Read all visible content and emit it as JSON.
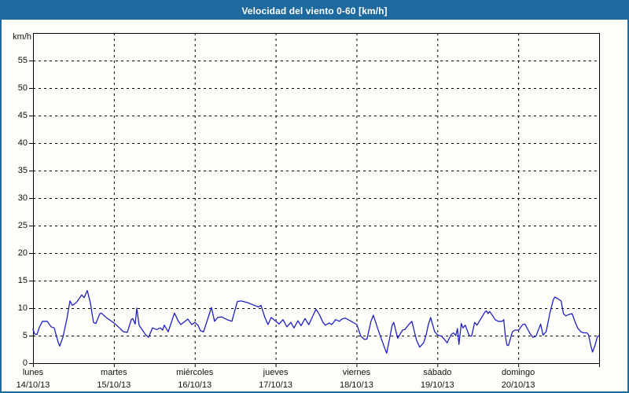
{
  "header": {
    "title": "Velocidad del viento 0-60 [km/h]"
  },
  "colors": {
    "header_bg": "#1e6a9e",
    "frame_border": "#1e6a9e",
    "canvas_bg": "#fdfefa",
    "line": "#2020c0",
    "axis": "#000000",
    "grid": "#000000",
    "text": "#111111",
    "title_text": "#ffffff"
  },
  "chart_data": {
    "type": "line",
    "title": "Velocidad del viento 0-60 [km/h]",
    "ylabel": "km/h",
    "xlabel": "",
    "ylim": [
      0,
      60
    ],
    "ytick_step": 5,
    "ytick_labeled_max": 55,
    "grid": "dashed",
    "legend": "none",
    "x_axis": {
      "unit": "days",
      "days": [
        {
          "name": "lunes",
          "date": "14/10/13"
        },
        {
          "name": "martes",
          "date": "15/10/13"
        },
        {
          "name": "miércoles",
          "date": "16/10/13"
        },
        {
          "name": "jueves",
          "date": "17/10/13"
        },
        {
          "name": "viernes",
          "date": "18/10/13"
        },
        {
          "name": "sábado",
          "date": "19/10/13"
        },
        {
          "name": "domingo",
          "date": "20/10/13"
        }
      ]
    },
    "series": [
      {
        "name": "Velocidad del viento",
        "unit": "km/h",
        "points": [
          [
            0,
            6.2
          ],
          [
            0.019,
            5.3
          ],
          [
            0.049,
            5.2
          ],
          [
            0.078,
            6.5
          ],
          [
            0.117,
            7.6
          ],
          [
            0.175,
            7.6
          ],
          [
            0.224,
            6.6
          ],
          [
            0.262,
            6.4
          ],
          [
            0.311,
            3.8
          ],
          [
            0.33,
            3.1
          ],
          [
            0.369,
            4.7
          ],
          [
            0.418,
            8
          ],
          [
            0.457,
            11.3
          ],
          [
            0.486,
            10.5
          ],
          [
            0.535,
            11
          ],
          [
            0.603,
            12.4
          ],
          [
            0.632,
            11.9
          ],
          [
            0.671,
            13.2
          ],
          [
            0.709,
            11
          ],
          [
            0.748,
            7.4
          ],
          [
            0.777,
            7.2
          ],
          [
            0.826,
            9
          ],
          [
            0.845,
            9.1
          ],
          [
            0.904,
            8.3
          ],
          [
            0.972,
            7.6
          ],
          [
            1.001,
            7.3
          ],
          [
            1.069,
            6.4
          ],
          [
            1.118,
            5.7
          ],
          [
            1.166,
            5.6
          ],
          [
            1.215,
            7.9
          ],
          [
            1.234,
            8.1
          ],
          [
            1.263,
            7.1
          ],
          [
            1.283,
            10
          ],
          [
            1.312,
            6.9
          ],
          [
            1.39,
            5.2
          ],
          [
            1.429,
            4.7
          ],
          [
            1.477,
            6.4
          ],
          [
            1.526,
            6.1
          ],
          [
            1.574,
            6.4
          ],
          [
            1.603,
            6
          ],
          [
            1.623,
            6.9
          ],
          [
            1.671,
            5.7
          ],
          [
            1.749,
            9.1
          ],
          [
            1.798,
            7.6
          ],
          [
            1.827,
            7
          ],
          [
            1.914,
            8
          ],
          [
            1.963,
            7
          ],
          [
            2.002,
            7.4
          ],
          [
            2.041,
            6.9
          ],
          [
            2.07,
            5.9
          ],
          [
            2.109,
            5.7
          ],
          [
            2.206,
            10.1
          ],
          [
            2.245,
            7.6
          ],
          [
            2.284,
            8.3
          ],
          [
            2.332,
            8.4
          ],
          [
            2.4,
            7.9
          ],
          [
            2.459,
            7.6
          ],
          [
            2.527,
            11.2
          ],
          [
            2.575,
            11.3
          ],
          [
            2.653,
            11
          ],
          [
            2.721,
            10.6
          ],
          [
            2.789,
            10.2
          ],
          [
            2.818,
            10.5
          ],
          [
            2.867,
            8.3
          ],
          [
            2.906,
            7
          ],
          [
            2.945,
            8.3
          ],
          [
            3.003,
            7.6
          ],
          [
            3.042,
            7.1
          ],
          [
            3.091,
            7.9
          ],
          [
            3.139,
            6.6
          ],
          [
            3.188,
            7.4
          ],
          [
            3.227,
            6.4
          ],
          [
            3.275,
            7.7
          ],
          [
            3.314,
            6.8
          ],
          [
            3.363,
            8.1
          ],
          [
            3.411,
            7
          ],
          [
            3.499,
            9.8
          ],
          [
            3.538,
            8.9
          ],
          [
            3.586,
            7.4
          ],
          [
            3.615,
            6.9
          ],
          [
            3.664,
            7.3
          ],
          [
            3.693,
            7
          ],
          [
            3.742,
            7.9
          ],
          [
            3.79,
            7.6
          ],
          [
            3.819,
            8
          ],
          [
            3.858,
            8.2
          ],
          [
            3.936,
            7.6
          ],
          [
            4.004,
            7
          ],
          [
            4.053,
            4.9
          ],
          [
            4.101,
            4.3
          ],
          [
            4.13,
            4.4
          ],
          [
            4.179,
            7.6
          ],
          [
            4.208,
            8.7
          ],
          [
            4.276,
            5.7
          ],
          [
            4.344,
            2.9
          ],
          [
            4.373,
            1.8
          ],
          [
            4.441,
            6.9
          ],
          [
            4.461,
            7.4
          ],
          [
            4.509,
            4.5
          ],
          [
            4.568,
            6
          ],
          [
            4.597,
            6.1
          ],
          [
            4.645,
            7
          ],
          [
            4.684,
            7.6
          ],
          [
            4.742,
            4.2
          ],
          [
            4.781,
            2.9
          ],
          [
            4.83,
            3.7
          ],
          [
            4.859,
            5
          ],
          [
            4.888,
            7
          ],
          [
            4.917,
            8.3
          ],
          [
            4.966,
            5.7
          ],
          [
            5.005,
            5.1
          ],
          [
            5.053,
            4.9
          ],
          [
            5.121,
            3.7
          ],
          [
            5.17,
            5.2
          ],
          [
            5.199,
            5.5
          ],
          [
            5.228,
            5
          ],
          [
            5.248,
            6.3
          ],
          [
            5.267,
            3.4
          ],
          [
            5.296,
            7.2
          ],
          [
            5.316,
            6.4
          ],
          [
            5.345,
            6.9
          ],
          [
            5.393,
            5
          ],
          [
            5.423,
            4.9
          ],
          [
            5.461,
            7.4
          ],
          [
            5.49,
            6.9
          ],
          [
            5.539,
            8.1
          ],
          [
            5.588,
            9.3
          ],
          [
            5.607,
            9.5
          ],
          [
            5.626,
            9
          ],
          [
            5.646,
            9.4
          ],
          [
            5.685,
            8.6
          ],
          [
            5.714,
            7.9
          ],
          [
            5.753,
            7.6
          ],
          [
            5.801,
            7.6
          ],
          [
            5.821,
            7.9
          ],
          [
            5.84,
            5
          ],
          [
            5.86,
            3.3
          ],
          [
            5.879,
            3.2
          ],
          [
            5.928,
            5.7
          ],
          [
            5.957,
            6
          ],
          [
            6.005,
            6
          ],
          [
            6.054,
            7
          ],
          [
            6.083,
            7.1
          ],
          [
            6.141,
            5.5
          ],
          [
            6.18,
            4.7
          ],
          [
            6.219,
            4.9
          ],
          [
            6.277,
            7.1
          ],
          [
            6.307,
            5.1
          ],
          [
            6.345,
            5.7
          ],
          [
            6.394,
            9.3
          ],
          [
            6.433,
            11.5
          ],
          [
            6.452,
            12
          ],
          [
            6.491,
            11.7
          ],
          [
            6.53,
            11.3
          ],
          [
            6.559,
            9
          ],
          [
            6.588,
            8.6
          ],
          [
            6.637,
            8.9
          ],
          [
            6.666,
            9
          ],
          [
            6.705,
            7.4
          ],
          [
            6.734,
            6.4
          ],
          [
            6.773,
            5.7
          ],
          [
            6.811,
            5.5
          ],
          [
            6.85,
            5.5
          ],
          [
            6.87,
            5.1
          ],
          [
            6.899,
            3.1
          ],
          [
            6.918,
            2
          ],
          [
            6.948,
            3.2
          ],
          [
            6.977,
            4.7
          ],
          [
            6.997,
            5
          ]
        ]
      }
    ]
  }
}
